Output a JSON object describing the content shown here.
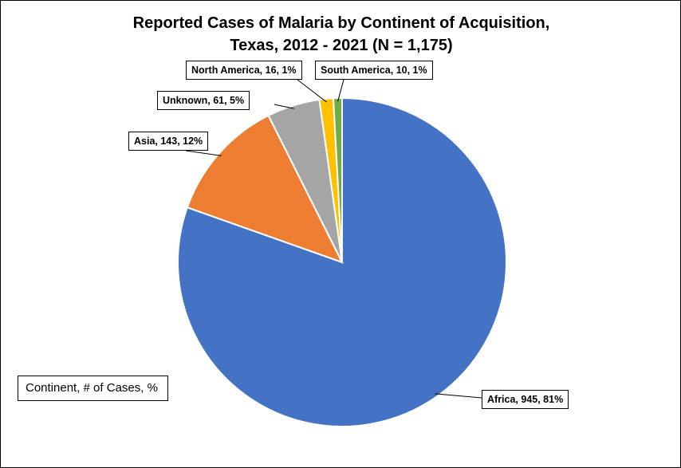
{
  "chart_data": {
    "type": "pie",
    "title_line1": "Reported Cases of Malaria by Continent of Acquisition,",
    "title_line2": "Texas, 2012 - 2021 (N = 1,175)",
    "legend_note": "Continent,  # of Cases, %",
    "start_angle": "12 o'clock, clockwise",
    "slices": [
      {
        "name": "Africa",
        "value": 945,
        "percent": "81%",
        "label": "Africa, 945, 81%",
        "color": "#4472C4"
      },
      {
        "name": "Asia",
        "value": 143,
        "percent": "12%",
        "label": "Asia, 143, 12%",
        "color": "#ED7D31"
      },
      {
        "name": "Unknown",
        "value": 61,
        "percent": "5%",
        "label": "Unknown, 61, 5%",
        "color": "#A5A5A5"
      },
      {
        "name": "North America",
        "value": 16,
        "percent": "1%",
        "label": "North America, 16, 1%",
        "color": "#FFC000"
      },
      {
        "name": "South America",
        "value": 10,
        "percent": "1%",
        "label": "South America, 10, 1%",
        "color": "#70AD47"
      }
    ]
  }
}
